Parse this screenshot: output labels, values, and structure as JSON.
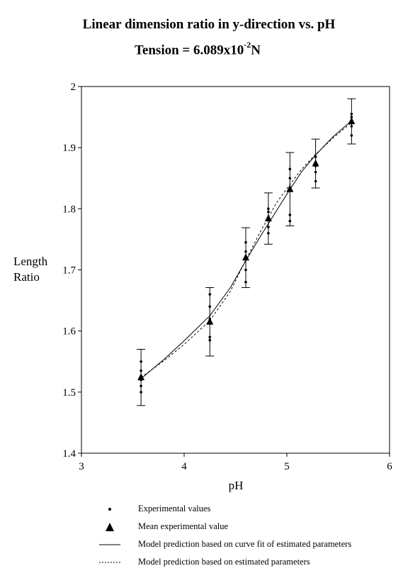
{
  "title_line1": "Linear dimension ratio in y-direction vs. pH",
  "title_line2_prefix": "Tension = 6.089x10",
  "title_line2_exp": "-2",
  "title_line2_unit": "N",
  "ylabel_line1": "Length",
  "ylabel_line2": "Ratio",
  "legend": {
    "experimental": "Experimental values",
    "mean": "Mean experimental value",
    "curve_fit": "Model prediction based on curve fit of estimated parameters",
    "estimated": "Model prediction based on estimated parameters"
  },
  "chart_data": {
    "type": "scatter",
    "title": "Linear dimension ratio in y-direction vs. pH",
    "xlabel": "pH",
    "ylabel": "Length Ratio",
    "xlim": [
      3,
      6
    ],
    "ylim": [
      1.4,
      2.0
    ],
    "xticks": [
      3,
      4,
      5,
      6
    ],
    "yticks": [
      1.4,
      1.5,
      1.6,
      1.7,
      1.8,
      1.9,
      2.0
    ],
    "xtick_labels": [
      "3",
      "4",
      "5",
      "6"
    ],
    "ytick_labels": [
      "1.4",
      "1.5",
      "1.6",
      "1.7",
      "1.8",
      "1.9",
      "2"
    ],
    "grid": false,
    "legend_position": "bottom",
    "experimental_points": [
      {
        "x": 3.58,
        "values": [
          1.55,
          1.535,
          1.51,
          1.5,
          1.52
        ]
      },
      {
        "x": 4.25,
        "values": [
          1.66,
          1.64,
          1.59,
          1.585,
          1.62
        ]
      },
      {
        "x": 4.6,
        "values": [
          1.745,
          1.73,
          1.7,
          1.68,
          1.72
        ]
      },
      {
        "x": 4.82,
        "values": [
          1.8,
          1.795,
          1.76,
          1.77,
          1.785
        ]
      },
      {
        "x": 5.03,
        "values": [
          1.865,
          1.85,
          1.79,
          1.78,
          1.835
        ]
      },
      {
        "x": 5.28,
        "values": [
          1.885,
          1.86,
          1.845,
          1.87,
          1.875
        ]
      },
      {
        "x": 5.63,
        "values": [
          1.955,
          1.95,
          1.935,
          1.92,
          1.94
        ]
      }
    ],
    "mean_points": {
      "x": [
        3.58,
        4.25,
        4.6,
        4.82,
        5.03,
        5.28,
        5.63
      ],
      "y": [
        1.524,
        1.615,
        1.72,
        1.784,
        1.832,
        1.874,
        1.943
      ],
      "error": [
        0.046,
        0.056,
        0.049,
        0.042,
        0.06,
        0.04,
        0.037
      ]
    },
    "series": [
      {
        "name": "Model prediction based on curve fit of estimated parameters",
        "style": "solid",
        "x": [
          3.58,
          3.8,
          4.0,
          4.25,
          4.45,
          4.6,
          4.75,
          4.9,
          5.03,
          5.15,
          5.28,
          5.45,
          5.63
        ],
        "y": [
          1.522,
          1.553,
          1.584,
          1.625,
          1.671,
          1.715,
          1.757,
          1.797,
          1.832,
          1.862,
          1.888,
          1.918,
          1.944
        ]
      },
      {
        "name": "Model prediction based on estimated parameters",
        "style": "dashed",
        "x": [
          3.58,
          3.8,
          4.0,
          4.25,
          4.45,
          4.6,
          4.75,
          4.9,
          5.03,
          5.15,
          5.28,
          5.45,
          5.63
        ],
        "y": [
          1.524,
          1.551,
          1.578,
          1.617,
          1.665,
          1.716,
          1.765,
          1.81,
          1.84,
          1.866,
          1.889,
          1.916,
          1.941
        ]
      }
    ]
  }
}
